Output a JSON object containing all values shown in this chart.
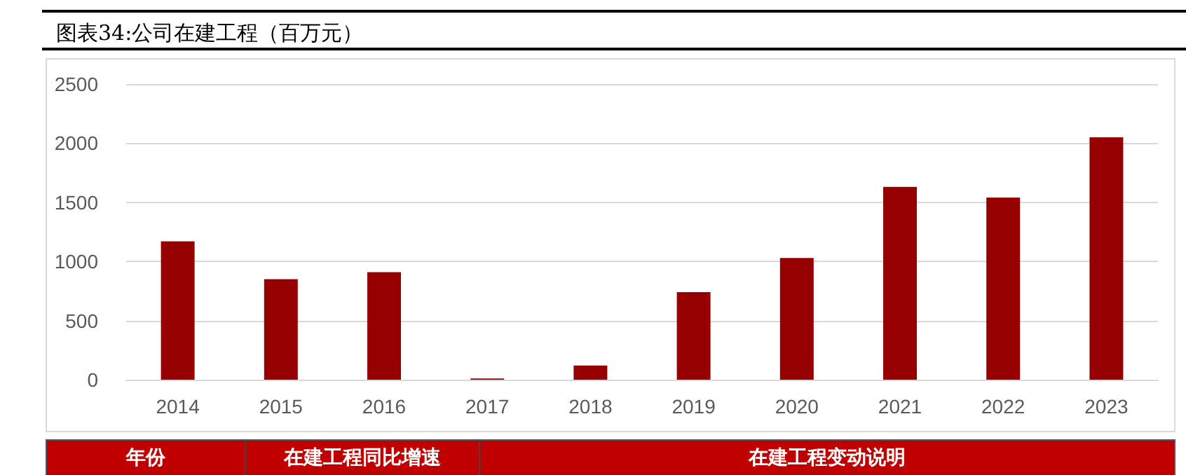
{
  "chart_data": {
    "type": "bar",
    "title": "图表34:公司在建工程（百万元）",
    "categories": [
      "2014",
      "2015",
      "2016",
      "2017",
      "2018",
      "2019",
      "2020",
      "2021",
      "2022",
      "2023"
    ],
    "values": [
      1170,
      850,
      910,
      10,
      120,
      740,
      1030,
      1630,
      1540,
      2050
    ],
    "color": "#960000",
    "ylim": [
      0,
      2500
    ],
    "yticks": [
      0,
      500,
      1000,
      1500,
      2000,
      2500
    ],
    "grid": "y",
    "annotations": [
      "年份",
      "在建工程同比增速",
      "在建工程变动说明"
    ]
  }
}
